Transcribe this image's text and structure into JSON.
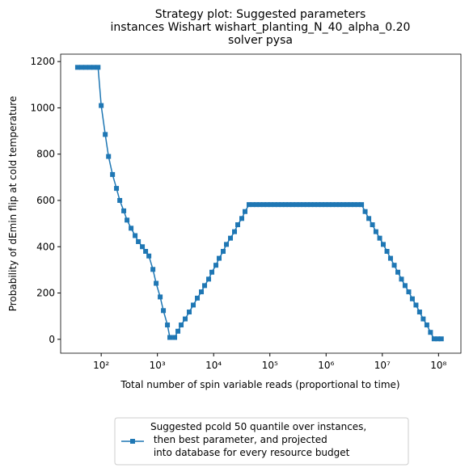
{
  "chart_data": {
    "type": "line",
    "title": "Strategy plot: Suggested parameters\ninstances Wishart wishart_planting_N_40_alpha_0.20\nsolver pysa",
    "x_label": "Total number of spin variable reads (proportional to time)",
    "y_label": "Probability of dEmin flip at cold temperature",
    "log_x": true,
    "xlim": [
      19,
      250000000
    ],
    "ylim": [
      -60,
      1232
    ],
    "xticks": [
      {
        "value": 100,
        "label": "10²"
      },
      {
        "value": 1000,
        "label": "10³"
      },
      {
        "value": 10000,
        "label": "10⁴"
      },
      {
        "value": 100000,
        "label": "10⁵"
      },
      {
        "value": 1000000,
        "label": "10⁶"
      },
      {
        "value": 10000000,
        "label": "10⁷"
      },
      {
        "value": 100000000,
        "label": "10⁸"
      }
    ],
    "yticks": [
      0,
      200,
      400,
      600,
      800,
      1000,
      1200
    ],
    "legend": "bottom",
    "x": [
      38,
      45,
      53,
      63,
      74,
      88,
      100,
      118,
      135,
      159,
      187,
      214,
      252,
      288,
      340,
      401,
      458,
      540,
      617,
      705,
      832,
      949,
      1120,
      1277,
      1507,
      1663,
      2029,
      2316,
      2644,
      3119,
      3680,
      4343,
      5125,
      6047,
      6903,
      8146,
      9299,
      10973,
      12526,
      14781,
      16873,
      19911,
      23496,
      26822,
      31650,
      36131,
      42636,
      49500,
      57400,
      66600,
      77300,
      89700,
      104000,
      121000,
      140000,
      163000,
      189000,
      219000,
      254000,
      295000,
      342000,
      397000,
      460000,
      534000,
      620000,
      719000,
      834000,
      968000,
      1120000,
      1300000,
      1510000,
      1750000,
      2030000,
      2360000,
      2740000,
      3170000,
      3680000,
      4270000,
      4950000,
      5750000,
      6670000,
      7700000,
      8980000,
      10400000,
      12100000,
      14000000,
      16300000,
      18900000,
      21900000,
      25400000,
      29500000,
      34200000,
      39700000,
      46000000,
      53400000,
      62000000,
      71900000,
      83400000,
      96800000,
      112000000
    ],
    "series": [
      {
        "name": "Suggested pcold 50 quantile over instances,\n then best parameter, and projected\n into database for every resource budget",
        "color": "#1f77b4",
        "values": [
          1175,
          1175,
          1175,
          1175,
          1175,
          1175,
          1010,
          885,
          790,
          712,
          652,
          600,
          555,
          515,
          480,
          448,
          422,
          400,
          380,
          360,
          302,
          242,
          183,
          124,
          62,
          8,
          8,
          35,
          62,
          88,
          118,
          148,
          178,
          205,
          232,
          260,
          290,
          320,
          350,
          380,
          410,
          437,
          465,
          495,
          522,
          552,
          582,
          582,
          582,
          582,
          582,
          582,
          582,
          582,
          582,
          582,
          582,
          582,
          582,
          582,
          582,
          582,
          582,
          582,
          582,
          582,
          582,
          582,
          582,
          582,
          582,
          582,
          582,
          582,
          582,
          582,
          582,
          582,
          552,
          522,
          495,
          465,
          437,
          410,
          380,
          350,
          320,
          290,
          260,
          232,
          205,
          175,
          148,
          118,
          88,
          62,
          30,
          2,
          2,
          2
        ]
      }
    ]
  }
}
